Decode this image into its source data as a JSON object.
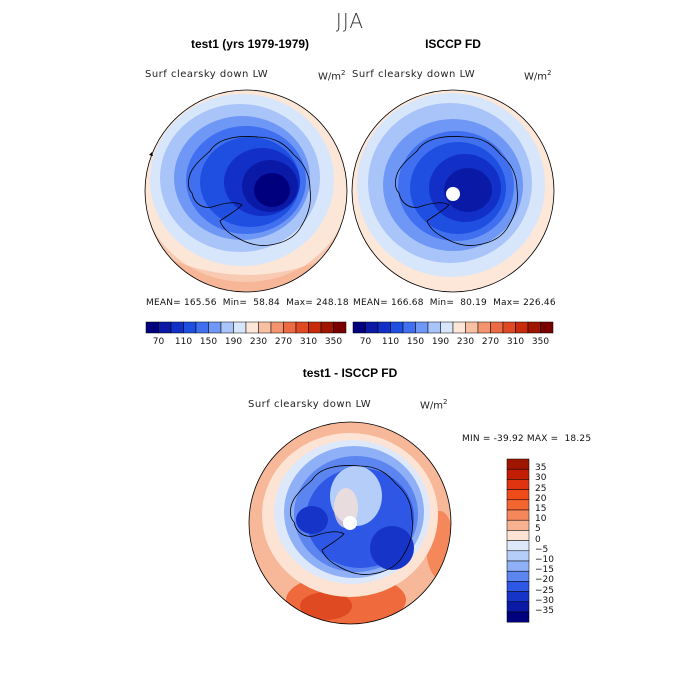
{
  "season": "JJA",
  "panel_left": {
    "title": "test1 (yrs 1979-1979)",
    "variable": "Surf clearsky down LW",
    "units_base": "W/m",
    "units_exp": "2",
    "stats": "MEAN= 165.56  Min=  58.84  Max= 248.18"
  },
  "panel_right": {
    "title": "ISCCP FD",
    "variable": "Surf clearsky down LW",
    "units_base": "W/m",
    "units_exp": "2",
    "stats": "MEAN= 166.68  Min=  80.19  Max= 226.46"
  },
  "panel_diff": {
    "title": "test1 - ISCCP FD",
    "variable": "Surf clearsky down LW",
    "units_base": "W/m",
    "units_exp": "2",
    "stats": "MIN = -39.92 MAX =  18.25"
  },
  "colorbar_top": {
    "tick_labels": [
      "70",
      "110",
      "150",
      "190",
      "230",
      "270",
      "310",
      "350"
    ],
    "colors": [
      "#00007f",
      "#0a1aa6",
      "#1230c8",
      "#1f4fe0",
      "#4070f0",
      "#6f97f5",
      "#a8c4f8",
      "#d8e6fb",
      "#fbe6d8",
      "#f8c0a2",
      "#f3946e",
      "#ec6a44",
      "#e04a22",
      "#c82a0c",
      "#a01500",
      "#7a0000"
    ]
  },
  "colorbar_diff": {
    "tick_labels": [
      "35",
      "30",
      "25",
      "20",
      "15",
      "10",
      "5",
      "0",
      "−5",
      "−10",
      "−15",
      "−20",
      "−25",
      "−30",
      "−35"
    ],
    "colors": [
      "#a01500",
      "#c21d00",
      "#e03410",
      "#ef4a1a",
      "#f36630",
      "#f5885a",
      "#f8b290",
      "#fde3d3",
      "#dde8fb",
      "#b5cdf9",
      "#8fb0f6",
      "#5c85ef",
      "#2f57e6",
      "#1634c8",
      "#0a1aa6",
      "#00007f"
    ]
  }
}
